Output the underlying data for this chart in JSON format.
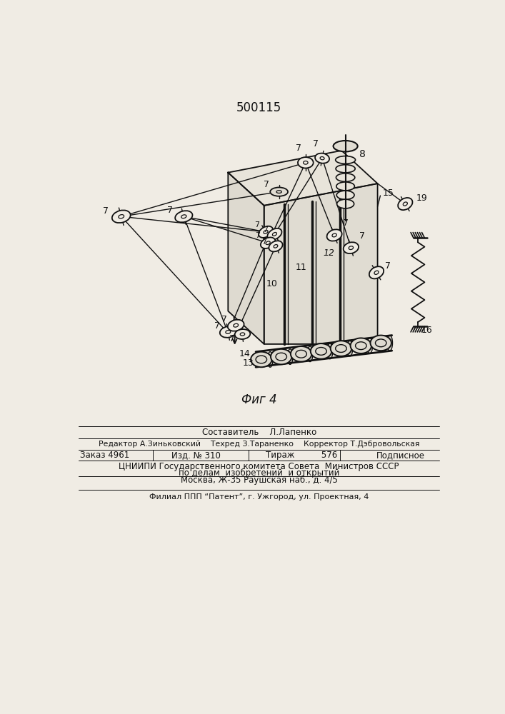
{
  "title": "500115",
  "fig_label": "Фиг 4",
  "bg_color": "#f0ece4",
  "line_color": "#111111",
  "footer": {
    "line1": "Составитель    Л.Лапенко",
    "line2_left": "Редактор А.Зиньковский",
    "line2_mid": "Техред З.Тараненко",
    "line2_right": "Корректор Т.Дэбровольская",
    "zak": "Заказ 4961",
    "izd": "Изд. № 310",
    "tirazh": "Тираж",
    "tirazh_val": "576",
    "podp": "Подписное",
    "cn1": "ЦНИИПИ Государственного комитета Совета  Министров СССР",
    "cn2": "по делам  изобретений  и открытий",
    "cn3": "Москва, Ж-35 Раушская наб., д. 4/5",
    "filial": "Филиал ППП “Патент”, г. Ужгород, ул. Проектная, 4"
  }
}
